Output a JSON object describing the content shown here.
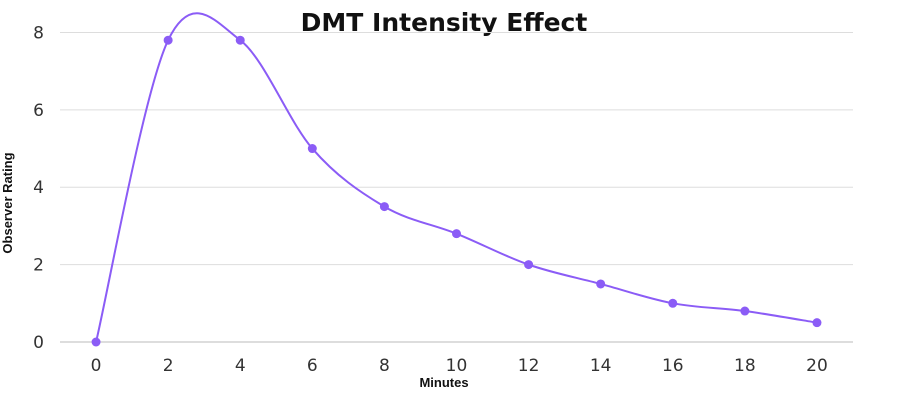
{
  "chart_data": {
    "type": "line",
    "title": "DMT Intensity Effect",
    "xlabel": "Minutes",
    "ylabel": "Observer Rating",
    "x": [
      0,
      2,
      4,
      6,
      8,
      10,
      12,
      14,
      16,
      18,
      20
    ],
    "series": [
      {
        "values": [
          0,
          7.8,
          7.8,
          5.0,
          3.5,
          2.8,
          2.0,
          1.5,
          1.0,
          0.8,
          0.5
        ]
      }
    ],
    "xlim": [
      -1,
      21
    ],
    "ylim": [
      0,
      8.4
    ],
    "xticks": [
      "0",
      "2",
      "4",
      "6",
      "8",
      "10",
      "12",
      "14",
      "16",
      "18",
      "20"
    ],
    "yticks": [
      "0",
      "2",
      "4",
      "6",
      "8"
    ],
    "grid": true,
    "legend": "none",
    "colors": {
      "line": "#8b5cf6",
      "point": "#8b5cf6"
    }
  }
}
